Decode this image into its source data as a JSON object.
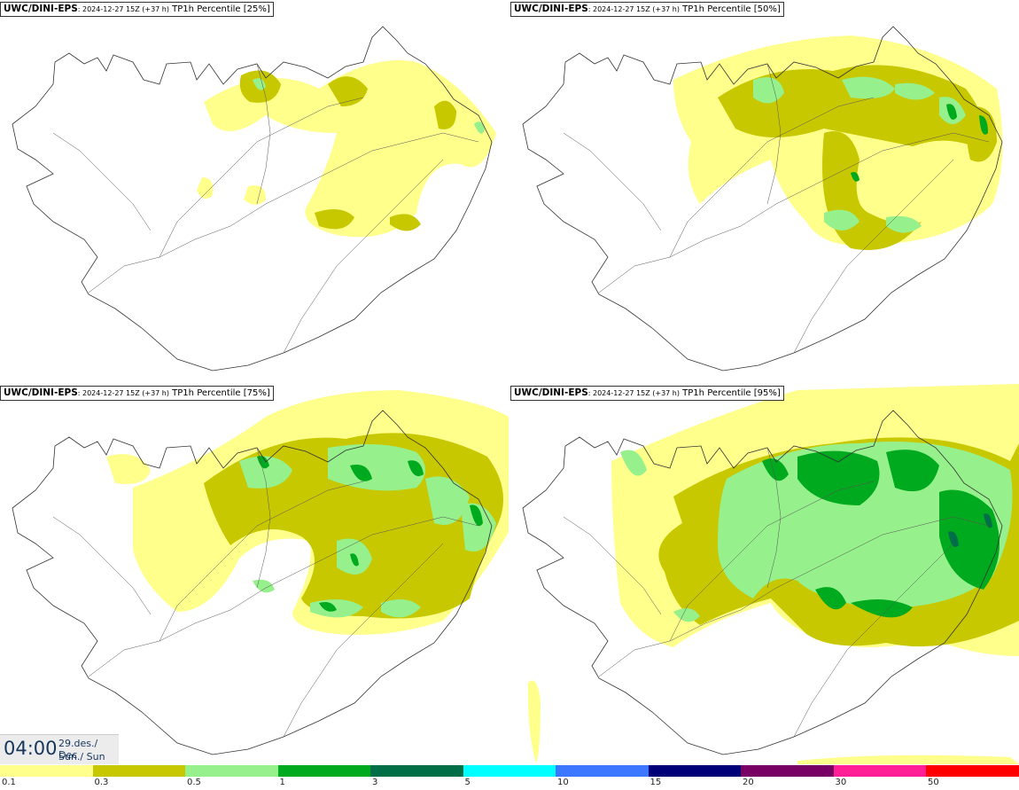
{
  "panels": [
    {
      "model": "UWC/DINI-EPS",
      "meta": ": 2024-12-27 15Z (+37 h)",
      "label": "TP1h Percentile [25%]"
    },
    {
      "model": "UWC/DINI-EPS",
      "meta": ": 2024-12-27 15Z (+37 h)",
      "label": "TP1h Percentile [50%]"
    },
    {
      "model": "UWC/DINI-EPS",
      "meta": ": 2024-12-27 15Z (+37 h)",
      "label": "TP1h Percentile [75%]"
    },
    {
      "model": "UWC/DINI-EPS",
      "meta": ": 2024-12-27 15Z (+37 h)",
      "label": "TP1h Percentile [95%]"
    }
  ],
  "valid_time": {
    "clock": "04:00",
    "date": "29.des./ Dec",
    "day": "Sun./ Sun"
  },
  "legend": {
    "ticks": [
      "0.1",
      "0.3",
      "0.5",
      "1",
      "3",
      "5",
      "10",
      "15",
      "20",
      "30",
      "50"
    ],
    "colors": [
      "#ffff8c",
      "#c8c800",
      "#96f08c",
      "#00aa1e",
      "#006e46",
      "#00ffff",
      "#3c78ff",
      "#000078",
      "#780064",
      "#ff1e96",
      "#ff0000"
    ]
  }
}
